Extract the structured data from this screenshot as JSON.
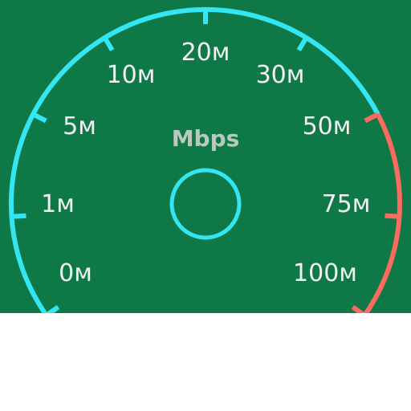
{
  "gauge": {
    "unit": "Mbps",
    "normal_color": "#33e6f2",
    "danger_color": "#fb6b5f",
    "background_color": "#0f7847",
    "ticks": [
      {
        "label": "0м",
        "zone": "normal"
      },
      {
        "label": "1м",
        "zone": "normal"
      },
      {
        "label": "5м",
        "zone": "normal"
      },
      {
        "label": "10м",
        "zone": "normal"
      },
      {
        "label": "20м",
        "zone": "normal"
      },
      {
        "label": "30м",
        "zone": "normal"
      },
      {
        "label": "50м",
        "zone": "danger"
      },
      {
        "label": "75м",
        "zone": "danger"
      },
      {
        "label": "100м",
        "zone": "danger"
      }
    ],
    "hub_icon": "circle-hub-icon"
  }
}
